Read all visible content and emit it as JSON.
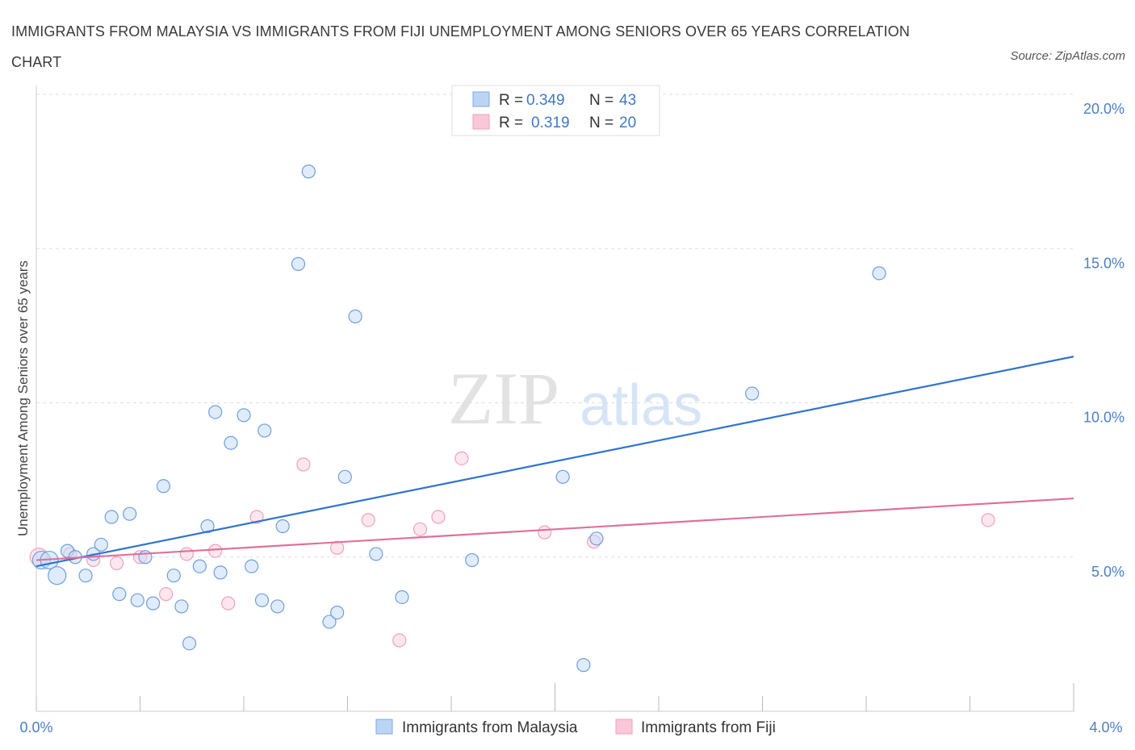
{
  "title": "IMMIGRANTS FROM MALAYSIA VS IMMIGRANTS FROM FIJI UNEMPLOYMENT AMONG SENIORS OVER 65 YEARS CORRELATION CHART",
  "source": "Source: ZipAtlas.com",
  "watermark": {
    "zip": "ZIP",
    "atlas": "atlas"
  },
  "legend": {
    "r_label": "R =",
    "n_label": "N =",
    "rows": [
      {
        "r": "0.349",
        "n": "43"
      },
      {
        "r": "0.319",
        "n": "20"
      }
    ]
  },
  "chart_data": {
    "type": "scatter",
    "title": "IMMIGRANTS FROM MALAYSIA VS IMMIGRANTS FROM FIJI UNEMPLOYMENT AMONG SENIORS OVER 65 YEARS CORRELATION CHART",
    "xlabel": "",
    "ylabel": "Unemployment Among Seniors over 65 years",
    "xlim": [
      0,
      4
    ],
    "ylim": [
      0,
      20
    ],
    "x_tick_labels": [
      "0.0%",
      "4.0%"
    ],
    "y_ticks": [
      5,
      10,
      15,
      20
    ],
    "y_tick_labels": [
      "5.0%",
      "10.0%",
      "15.0%",
      "20.0%"
    ],
    "grid": "horizontal dashed",
    "legend_position": "top-center",
    "colors": {
      "malaysia": "#6d9fe0",
      "fiji": "#f0a0bc",
      "malaysia_line": "#2f74cf",
      "fiji_line": "#e0709a"
    },
    "series": [
      {
        "name": "Immigrants from Malaysia",
        "points": [
          [
            0.02,
            4.9
          ],
          [
            0.05,
            4.9
          ],
          [
            0.08,
            4.4
          ],
          [
            0.12,
            5.2
          ],
          [
            0.15,
            5.0
          ],
          [
            0.19,
            4.4
          ],
          [
            0.22,
            5.1
          ],
          [
            0.25,
            5.4
          ],
          [
            0.29,
            6.3
          ],
          [
            0.32,
            3.8
          ],
          [
            0.36,
            6.4
          ],
          [
            0.39,
            3.6
          ],
          [
            0.42,
            5.0
          ],
          [
            0.45,
            3.5
          ],
          [
            0.49,
            7.3
          ],
          [
            0.53,
            4.4
          ],
          [
            0.56,
            3.4
          ],
          [
            0.59,
            2.2
          ],
          [
            0.63,
            4.7
          ],
          [
            0.66,
            6.0
          ],
          [
            0.69,
            9.7
          ],
          [
            0.71,
            4.5
          ],
          [
            0.75,
            8.7
          ],
          [
            0.8,
            9.6
          ],
          [
            0.83,
            4.7
          ],
          [
            0.87,
            3.6
          ],
          [
            0.88,
            9.1
          ],
          [
            0.93,
            3.4
          ],
          [
            0.95,
            6.0
          ],
          [
            1.01,
            14.5
          ],
          [
            1.05,
            17.5
          ],
          [
            1.13,
            2.9
          ],
          [
            1.16,
            3.2
          ],
          [
            1.19,
            7.6
          ],
          [
            1.23,
            12.8
          ],
          [
            1.31,
            5.1
          ],
          [
            1.41,
            3.7
          ],
          [
            1.68,
            4.9
          ],
          [
            2.03,
            7.6
          ],
          [
            2.11,
            1.5
          ],
          [
            2.16,
            5.6
          ],
          [
            2.76,
            10.3
          ],
          [
            3.25,
            14.2
          ]
        ],
        "trend": {
          "x": [
            0,
            4
          ],
          "y": [
            4.7,
            11.5
          ]
        }
      },
      {
        "name": "Immigrants from Fiji",
        "points": [
          [
            0.01,
            5.0
          ],
          [
            0.13,
            5.1
          ],
          [
            0.22,
            4.9
          ],
          [
            0.31,
            4.8
          ],
          [
            0.4,
            5.0
          ],
          [
            0.5,
            3.8
          ],
          [
            0.58,
            5.1
          ],
          [
            0.69,
            5.2
          ],
          [
            0.74,
            3.5
          ],
          [
            0.85,
            6.3
          ],
          [
            1.03,
            8.0
          ],
          [
            1.16,
            5.3
          ],
          [
            1.28,
            6.2
          ],
          [
            1.4,
            2.3
          ],
          [
            1.48,
            5.9
          ],
          [
            1.55,
            6.3
          ],
          [
            1.64,
            8.2
          ],
          [
            1.96,
            5.8
          ],
          [
            2.15,
            5.5
          ],
          [
            3.67,
            6.2
          ]
        ],
        "trend": {
          "x": [
            0,
            4
          ],
          "y": [
            4.9,
            6.9
          ]
        }
      }
    ]
  }
}
